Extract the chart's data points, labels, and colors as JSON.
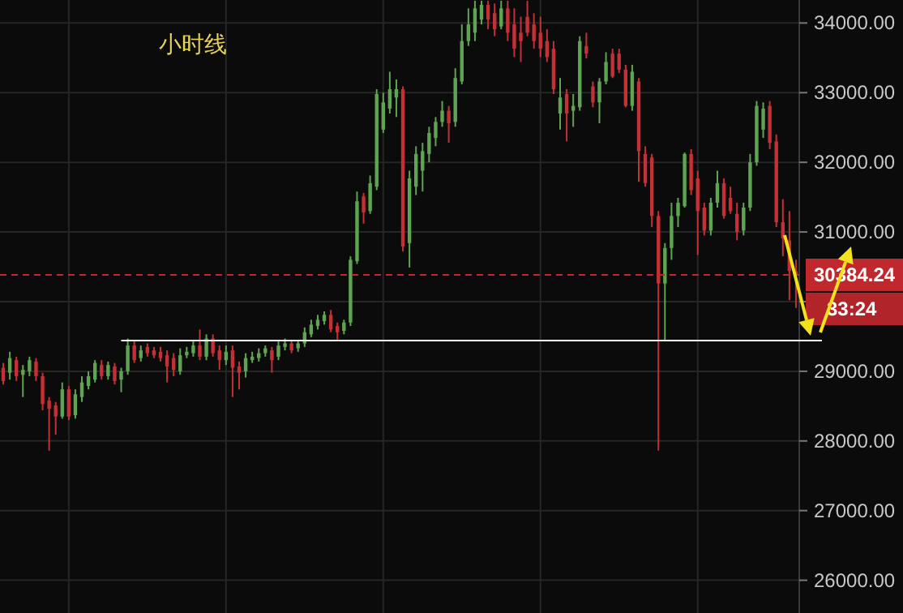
{
  "chart_data": {
    "type": "candlestick",
    "title": "小时线",
    "categories": [
      null,
      null,
      null,
      null,
      null,
      null,
      null,
      null,
      null,
      null,
      null,
      null,
      null,
      null,
      null,
      null,
      null,
      null,
      null,
      null,
      null,
      null,
      null,
      null,
      null,
      null,
      null,
      null,
      null,
      null,
      null,
      null,
      null,
      null,
      null,
      null,
      null,
      null,
      null,
      null,
      null,
      null,
      null,
      null,
      null,
      null,
      null,
      null,
      null,
      null,
      null,
      null,
      null,
      null,
      null,
      null,
      null,
      null,
      null,
      null,
      null,
      null,
      null,
      null,
      null,
      null,
      null,
      null,
      null,
      null,
      null,
      null,
      null,
      null,
      null,
      null,
      null,
      null,
      null,
      null,
      null,
      null,
      null,
      null,
      null,
      null,
      null,
      null,
      null,
      null,
      null,
      null,
      null,
      null,
      null,
      null,
      null,
      null,
      null,
      null,
      null,
      null,
      null,
      null,
      null,
      null,
      null,
      null,
      null,
      null,
      null,
      null,
      null,
      null,
      null,
      null,
      null,
      null,
      null,
      null,
      null,
      null
    ],
    "ohlc": [
      [
        29050,
        29120,
        28810,
        28860
      ],
      [
        28980,
        29280,
        28880,
        29190
      ],
      [
        29160,
        29210,
        28860,
        28930
      ],
      [
        28950,
        29090,
        28630,
        29020
      ],
      [
        29000,
        29210,
        28930,
        29160
      ],
      [
        29140,
        29190,
        28860,
        28930
      ],
      [
        28930,
        28980,
        28440,
        28530
      ],
      [
        28580,
        28630,
        27860,
        28460
      ],
      [
        28510,
        28560,
        28090,
        28350
      ],
      [
        28350,
        28840,
        28320,
        28740
      ],
      [
        28740,
        28790,
        28300,
        28350
      ],
      [
        28370,
        28740,
        28320,
        28670
      ],
      [
        28630,
        28930,
        28560,
        28840
      ],
      [
        28790,
        29000,
        28740,
        28930
      ],
      [
        28880,
        29160,
        28840,
        29120
      ],
      [
        29090,
        29160,
        28880,
        28930
      ],
      [
        28930,
        29140,
        28880,
        29090
      ],
      [
        29070,
        29120,
        28810,
        28860
      ],
      [
        28880,
        29050,
        28700,
        29000
      ],
      [
        29000,
        29470,
        28950,
        29370
      ],
      [
        29370,
        29440,
        29120,
        29160
      ],
      [
        29190,
        29370,
        29140,
        29300
      ],
      [
        29350,
        29400,
        29210,
        29260
      ],
      [
        29300,
        29350,
        29190,
        29230
      ],
      [
        29280,
        29350,
        29140,
        29190
      ],
      [
        29230,
        29300,
        28840,
        29070
      ],
      [
        29190,
        29260,
        28930,
        29020
      ],
      [
        29000,
        29330,
        28950,
        29230
      ],
      [
        29230,
        29350,
        29190,
        29280
      ],
      [
        29260,
        29440,
        29210,
        29370
      ],
      [
        29370,
        29600,
        29160,
        29210
      ],
      [
        29210,
        29530,
        29160,
        29470
      ],
      [
        29470,
        29530,
        29210,
        29260
      ],
      [
        29300,
        29370,
        29020,
        29160
      ],
      [
        29160,
        29370,
        29090,
        29280
      ],
      [
        29300,
        29370,
        28630,
        29050
      ],
      [
        29070,
        29140,
        28740,
        28980
      ],
      [
        29000,
        29260,
        28910,
        29190
      ],
      [
        29160,
        29280,
        29120,
        29210
      ],
      [
        29190,
        29330,
        29140,
        29260
      ],
      [
        29260,
        29370,
        29210,
        29330
      ],
      [
        29300,
        29350,
        28980,
        29160
      ],
      [
        29210,
        29440,
        29160,
        29370
      ],
      [
        29350,
        29470,
        29300,
        29400
      ],
      [
        29400,
        29440,
        29260,
        29300
      ],
      [
        29330,
        29440,
        29280,
        29400
      ],
      [
        29400,
        29630,
        29350,
        29560
      ],
      [
        29530,
        29740,
        29490,
        29670
      ],
      [
        29650,
        29810,
        29600,
        29740
      ],
      [
        29720,
        29860,
        29670,
        29810
      ],
      [
        29810,
        29880,
        29560,
        29600
      ],
      [
        29650,
        29700,
        29440,
        29560
      ],
      [
        29580,
        29740,
        29530,
        29700
      ],
      [
        29700,
        30650,
        29650,
        30600
      ],
      [
        30580,
        31580,
        30540,
        31440
      ],
      [
        31510,
        31560,
        31120,
        31280
      ],
      [
        31300,
        31810,
        31260,
        31700
      ],
      [
        31650,
        33050,
        31600,
        32980
      ],
      [
        32470,
        33000,
        32420,
        32860
      ],
      [
        32770,
        33300,
        32700,
        33050
      ],
      [
        32930,
        33190,
        32650,
        33050
      ],
      [
        33050,
        33090,
        30720,
        30790
      ],
      [
        30840,
        31880,
        30490,
        31770
      ],
      [
        31650,
        32230,
        31530,
        32120
      ],
      [
        31880,
        32280,
        31580,
        32160
      ],
      [
        32120,
        32510,
        32000,
        32420
      ],
      [
        32350,
        32650,
        32230,
        32580
      ],
      [
        32580,
        32880,
        32510,
        32740
      ],
      [
        32740,
        32810,
        32280,
        32560
      ],
      [
        32580,
        33350,
        32510,
        33210
      ],
      [
        33160,
        33980,
        33120,
        33740
      ],
      [
        33740,
        34210,
        33670,
        33980
      ],
      [
        33860,
        34320,
        33740,
        34210
      ],
      [
        34050,
        34320,
        33980,
        34260
      ],
      [
        34260,
        34320,
        33910,
        34050
      ],
      [
        34140,
        34280,
        33810,
        33910
      ],
      [
        33950,
        34320,
        33910,
        34210
      ],
      [
        34210,
        34320,
        33740,
        33860
      ],
      [
        33980,
        34210,
        33510,
        33630
      ],
      [
        33860,
        34090,
        33440,
        33740
      ],
      [
        34090,
        34320,
        33810,
        33860
      ],
      [
        33980,
        34140,
        33630,
        33740
      ],
      [
        33860,
        34090,
        33510,
        33630
      ],
      [
        33740,
        33910,
        33440,
        33510
      ],
      [
        33630,
        33740,
        32980,
        33050
      ],
      [
        32700,
        33210,
        32470,
        32930
      ],
      [
        32980,
        33050,
        32300,
        32700
      ],
      [
        32740,
        32980,
        32510,
        32810
      ],
      [
        32790,
        33810,
        32740,
        33740
      ],
      [
        33670,
        33860,
        33490,
        33560
      ],
      [
        33090,
        33160,
        32790,
        32860
      ],
      [
        32860,
        33210,
        32560,
        33160
      ],
      [
        33160,
        33580,
        33120,
        33440
      ],
      [
        33560,
        33630,
        33210,
        33230
      ],
      [
        33560,
        33630,
        33280,
        33330
      ],
      [
        33330,
        33400,
        32790,
        32810
      ],
      [
        32810,
        33400,
        32740,
        33300
      ],
      [
        33160,
        33210,
        31720,
        32160
      ],
      [
        32120,
        32230,
        31650,
        31700
      ],
      [
        32070,
        32120,
        31070,
        31230
      ],
      [
        31230,
        31300,
        27860,
        30260
      ],
      [
        30260,
        30840,
        29440,
        30770
      ],
      [
        30770,
        31420,
        30600,
        31230
      ],
      [
        31230,
        31490,
        31070,
        31420
      ],
      [
        31370,
        32140,
        31350,
        32120
      ],
      [
        32120,
        32190,
        31530,
        31600
      ],
      [
        31770,
        31880,
        30670,
        31300
      ],
      [
        31350,
        31420,
        30950,
        31020
      ],
      [
        31020,
        31490,
        30950,
        31420
      ],
      [
        31420,
        31880,
        31350,
        31700
      ],
      [
        31700,
        31770,
        31190,
        31230
      ],
      [
        31490,
        31650,
        31260,
        31300
      ],
      [
        31260,
        31420,
        30880,
        31000
      ],
      [
        31020,
        31420,
        30950,
        31350
      ],
      [
        31350,
        32120,
        31300,
        32000
      ],
      [
        32000,
        32880,
        31950,
        32810
      ],
      [
        32470,
        32860,
        32350,
        32770
      ],
      [
        32810,
        32880,
        32190,
        32280
      ],
      [
        32300,
        32400,
        31070,
        31140
      ],
      [
        31140,
        31470,
        30650,
        30910
      ],
      [
        30880,
        31300,
        30020,
        30440
      ],
      [
        30440,
        30600,
        29910,
        30384.24
      ]
    ],
    "ylim": [
      25530,
      34330
    ],
    "yticks": [
      {
        "value": 26000,
        "label": "26000.00"
      },
      {
        "value": 27000,
        "label": "27000.00"
      },
      {
        "value": 28000,
        "label": "28000.00"
      },
      {
        "value": 29000,
        "label": "29000.00"
      },
      {
        "value": 30000,
        "label": null
      },
      {
        "value": 31000,
        "label": "31000.00"
      },
      {
        "value": 32000,
        "label": "32000.00"
      },
      {
        "value": 33000,
        "label": "33000.00"
      },
      {
        "value": 34000,
        "label": "34000.00"
      }
    ],
    "grid": true,
    "ref_lines": [
      {
        "axis": "y",
        "value": 30384.24,
        "label": "30384.24",
        "color": "#c0282d",
        "line_style": "dashed"
      },
      {
        "axis": "y",
        "value": 29440,
        "color": "#ffffff",
        "line_style": "solid"
      }
    ],
    "annotations": [
      "33:24"
    ]
  }
}
